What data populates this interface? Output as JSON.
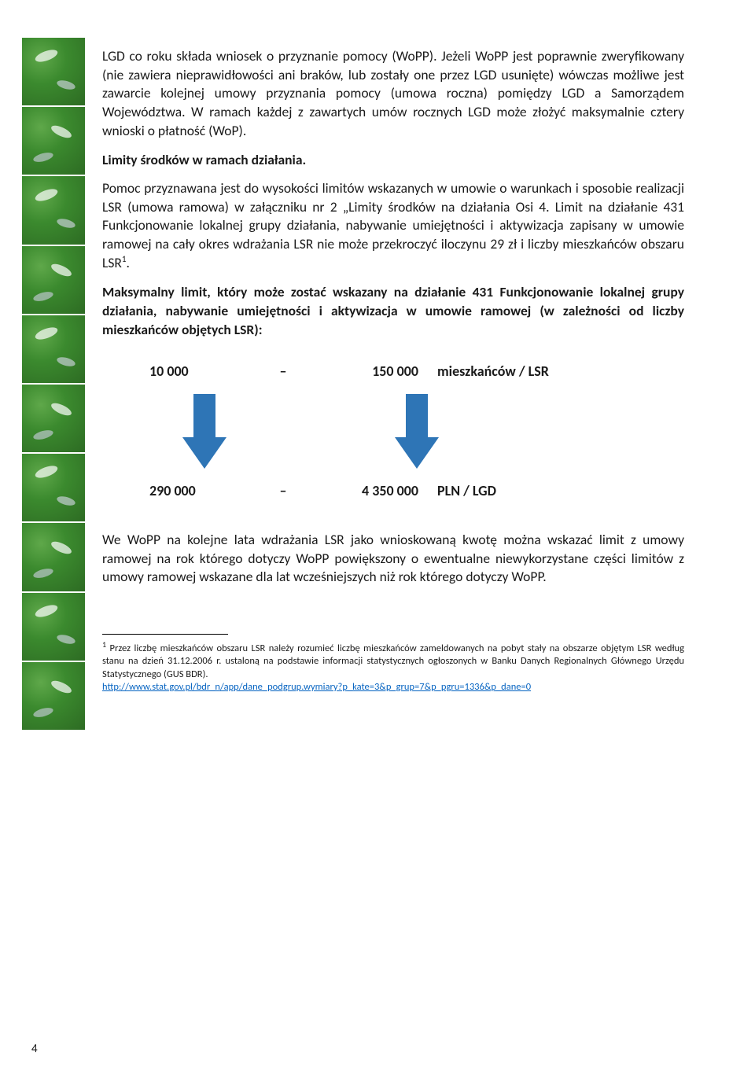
{
  "body": {
    "p1": "LGD co roku składa wniosek o przyznanie pomocy (WoPP). Jeżeli WoPP jest poprawnie zweryfikowany (nie zawiera nieprawidłowości ani braków, lub zostały one przez LGD usunięte) wówczas możliwe jest zawarcie kolejnej umowy przyznania pomocy (umowa roczna) pomiędzy LGD a Samorządem Województwa. W ramach każdej z zawartych umów rocznych LGD może złożyć maksymalnie cztery wnioski o płatność (WoP).",
    "h1": "Limity środków w ramach działania.",
    "p2_a": "Pomoc przyznawana jest do wysokości limitów wskazanych w umowie o warunkach i sposobie realizacji LSR (umowa ramowa) w załączniku nr 2 „Limity środków na działania Osi 4. Limit na działanie 431 Funkcjonowanie lokalnej grupy działania, nabywanie umiejętności i aktywizacja zapisany w umowie ramowej na cały okres wdrażania LSR nie może przekroczyć iloczynu 29 zł i liczby mieszkańców obszaru LSR",
    "p2_sup": "1",
    "p2_b": ".",
    "p3": "Maksymalny limit, który może zostać wskazany na działanie 431 Funkcjonowanie lokalnej grupy działania, nabywanie umiejętności i aktywizacja w umowie ramowej (w zależności od liczby mieszkańców objętych LSR):",
    "p4": "We WoPP na kolejne lata wdrażania LSR jako wnioskowaną kwotę można wskazać limit z umowy ramowej na rok którego dotyczy WoPP powiększony o ewentualne niewykorzystane części limitów z umowy ramowej wskazane dla lat wcześniejszych niż rok którego dotyczy WoPP."
  },
  "calc": {
    "row1": {
      "a": "10 000",
      "dash": "–",
      "b": "150 000",
      "unit": "mieszkańców / LSR"
    },
    "row2": {
      "a": "290 000",
      "dash": "–",
      "b": "4 350 000",
      "unit": "PLN / LGD"
    },
    "arrow_color": "#2e75b6"
  },
  "footnote": {
    "marker": "1",
    "text": " Przez liczbę mieszkańców obszaru LSR należy rozumieć liczbę mieszkańców zameldowanych na pobyt stały na obszarze objętym LSR według stanu na dzień 31.12.2006 r. ustaloną na podstawie informacji statystycznych ogłoszonych w Banku Danych Regionalnych Głównego Urzędu Statystycznego (GUS BDR).",
    "link": "http://www.stat.gov.pl/bdr_n/app/dane_podgrup.wymiary?p_kate=3&p_grup=7&p_pgru=1336&p_dane=0"
  },
  "page_number": "4"
}
